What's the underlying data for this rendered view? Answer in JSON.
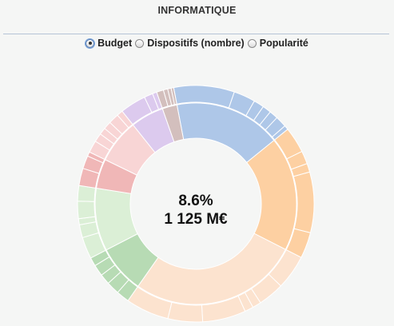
{
  "header": {
    "title": "INFORMATIQUE"
  },
  "controls": {
    "options": [
      {
        "label": "Budget",
        "selected": true
      },
      {
        "label": "Dispositifs (nombre)",
        "selected": false
      },
      {
        "label": "Popularité",
        "selected": false
      }
    ]
  },
  "chart_data": {
    "type": "sunburst",
    "title": "INFORMATIQUE",
    "center_text": {
      "line1": "8.6%",
      "line2": "1 125 M€"
    },
    "inner_ring": [
      {
        "value": 14.5,
        "color": "#aec7e8"
      },
      {
        "value": 15.5,
        "color": "#fdd0a2"
      },
      {
        "value": 23.0,
        "color": "#fce3cf"
      },
      {
        "value": 6.5,
        "color": "#b7dbb4"
      },
      {
        "value": 8.5,
        "color": "#dbefd6"
      },
      {
        "value": 4.0,
        "color": "#f0b7b7"
      },
      {
        "value": 6.0,
        "color": "#f8d5d5"
      },
      {
        "value": 4.5,
        "color": "#dccaee"
      },
      {
        "value": 2.0,
        "color": "#d3bfbd"
      }
    ],
    "outer_ring": [
      {
        "values": [
          7,
          2.5,
          1.2,
          1,
          1,
          1.3,
          0.5
        ],
        "color": "#aec7e8"
      },
      {
        "values": [
          3,
          1.5,
          1,
          7,
          3
        ],
        "color": "#fdd0a2"
      },
      {
        "values": [
          4,
          3,
          1,
          1,
          5,
          4,
          5
        ],
        "color": "#fce3cf"
      },
      {
        "values": [
          1.5,
          1.5,
          1.2,
          1.3,
          1
        ],
        "color": "#b7dbb4"
      },
      {
        "values": [
          2.5,
          1.5,
          0.7,
          2.0,
          1.8
        ],
        "color": "#dbefd6"
      },
      {
        "values": [
          2,
          1.5,
          0.5
        ],
        "color": "#f0b7b7"
      },
      {
        "values": [
          1.4,
          1,
          0.8,
          0.9,
          1.2,
          0.7
        ],
        "color": "#f8d5d5"
      },
      {
        "values": [
          3,
          1,
          0.5
        ],
        "color": "#dccaee"
      },
      {
        "values": [
          0.8,
          0.5,
          0.4,
          0.3
        ],
        "color": "#d3bfbd"
      }
    ]
  }
}
